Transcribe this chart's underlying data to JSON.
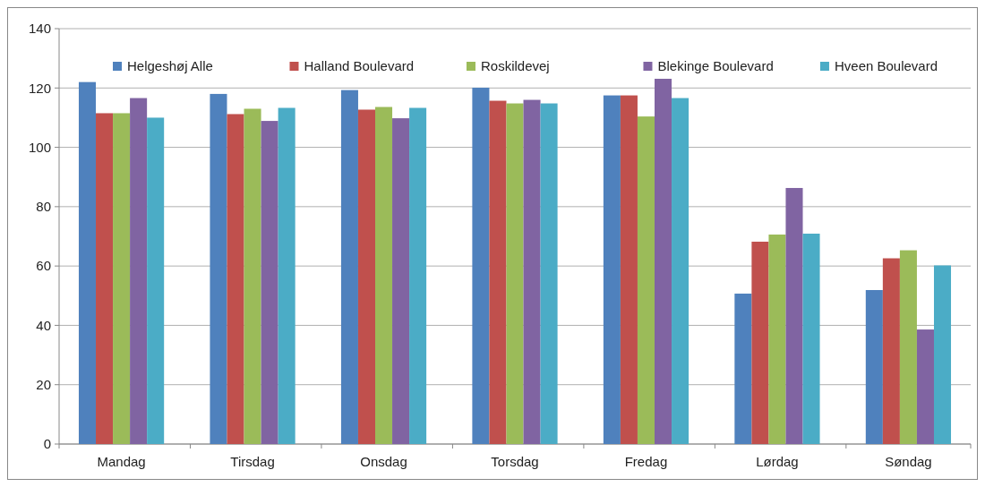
{
  "chart_data": {
    "type": "bar",
    "categories": [
      "Mandag",
      "Tirsdag",
      "Onsdag",
      "Torsdag",
      "Fredag",
      "Lørdag",
      "Søndag"
    ],
    "series": [
      {
        "name": "Helgeshøj Alle",
        "color": "#4f81bd",
        "values": [
          122,
          118,
          119.3,
          120.1,
          117.5,
          50.7,
          51.9
        ]
      },
      {
        "name": "Halland Boulevard",
        "color": "#c0504d",
        "values": [
          111.5,
          111.2,
          112.7,
          115.7,
          117.5,
          68.2,
          62.6
        ]
      },
      {
        "name": "Roskildevej",
        "color": "#9bbb59",
        "values": [
          111.5,
          113,
          113.6,
          114.8,
          110.4,
          70.6,
          65.3
        ]
      },
      {
        "name": "Blekinge Boulevard",
        "color": "#8064a2",
        "values": [
          116.6,
          108.9,
          109.8,
          116,
          123.1,
          86.3,
          38.6
        ]
      },
      {
        "name": "Hveen Boulevard",
        "color": "#4bacc6",
        "values": [
          110,
          113.3,
          113.3,
          114.8,
          116.6,
          70.9,
          60.2
        ]
      }
    ],
    "ylim": [
      0,
      140
    ],
    "yticks": [
      0,
      20,
      40,
      60,
      80,
      100,
      120,
      140
    ],
    "grid": "y",
    "legend": "top"
  }
}
